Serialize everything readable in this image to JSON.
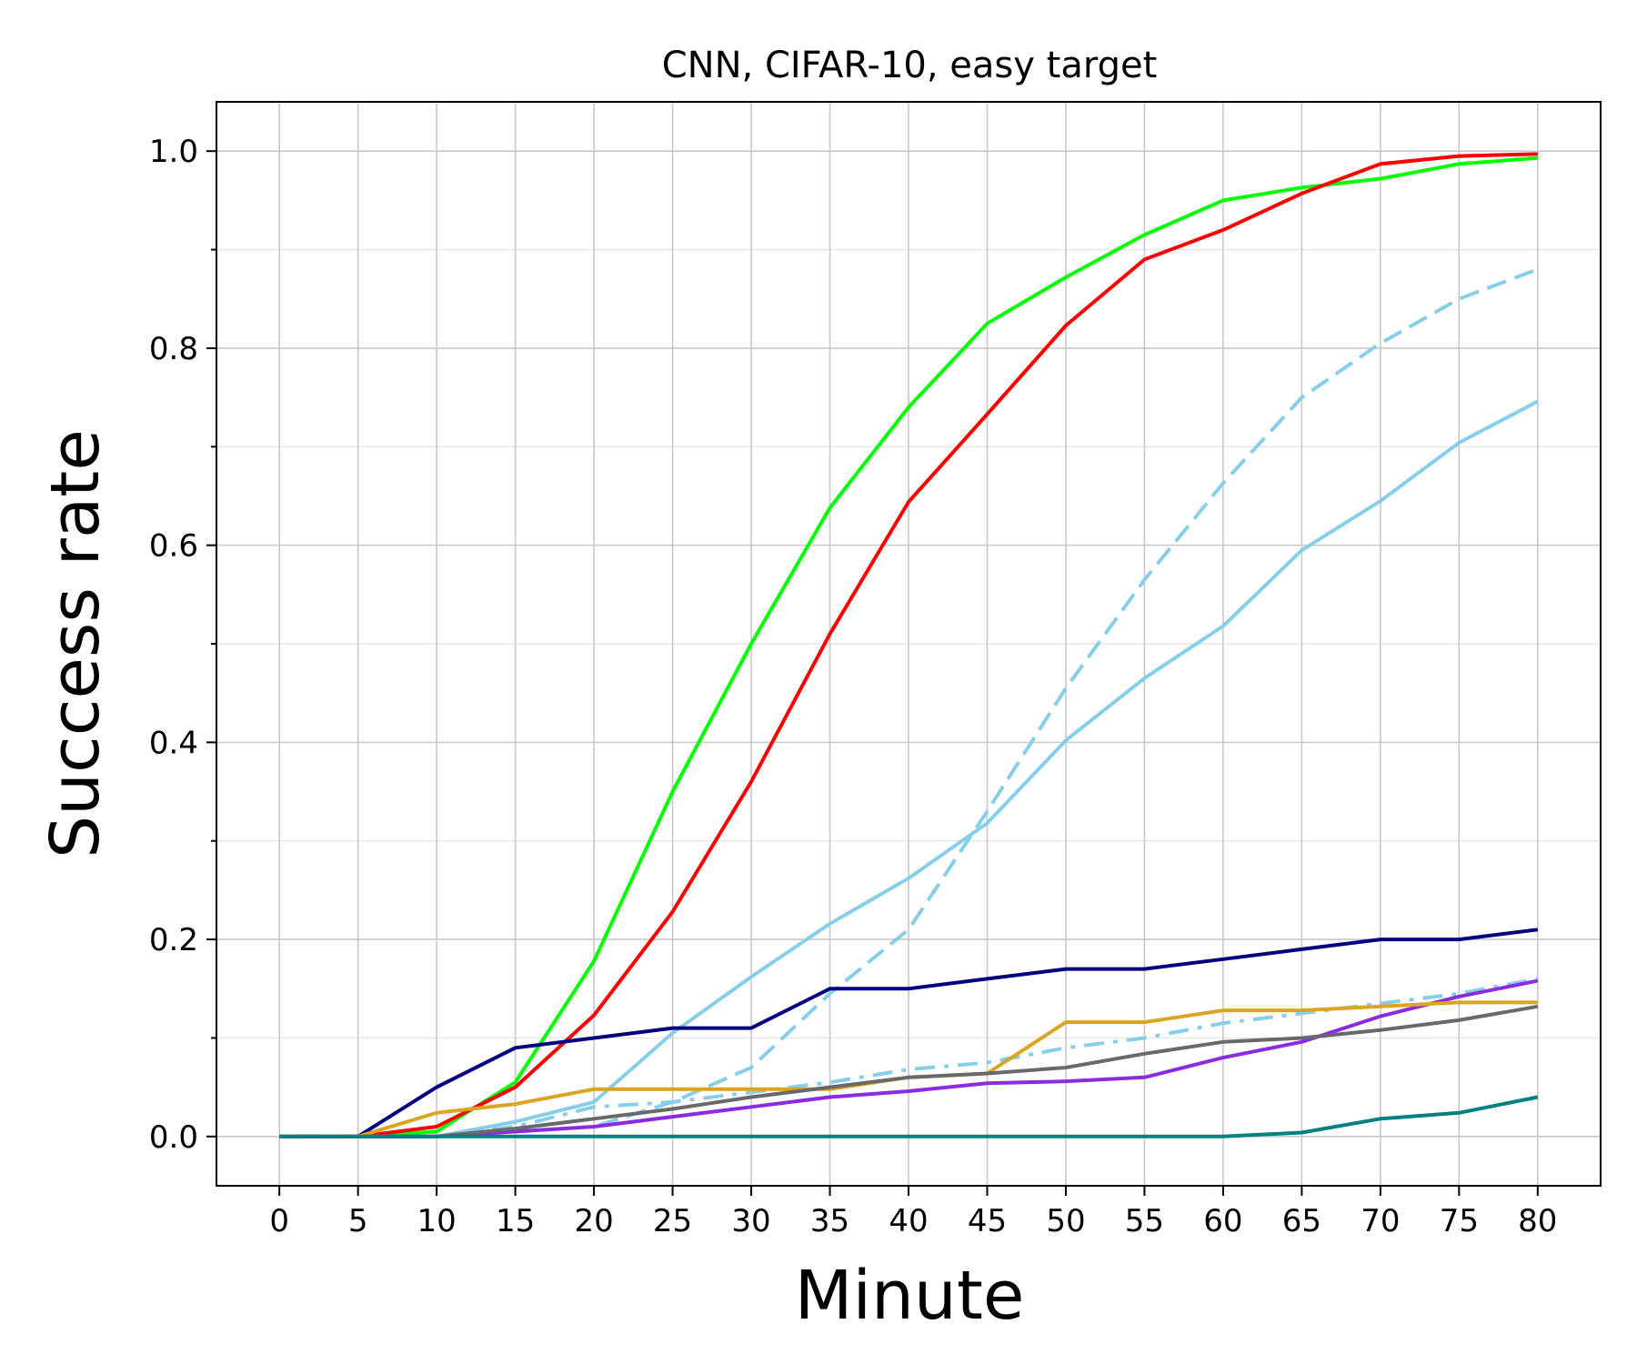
{
  "chart_data": {
    "type": "line",
    "title": "CNN, CIFAR-10, easy target",
    "xlabel": "Minute",
    "ylabel": "Success rate",
    "x": [
      0,
      5,
      10,
      15,
      20,
      25,
      30,
      35,
      40,
      45,
      50,
      55,
      60,
      65,
      70,
      75,
      80
    ],
    "xticks": [
      0,
      5,
      10,
      15,
      20,
      25,
      30,
      35,
      40,
      45,
      50,
      55,
      60,
      65,
      70,
      75,
      80
    ],
    "yticks": [
      0.0,
      0.2,
      0.4,
      0.6,
      0.8,
      1.0
    ],
    "ytick_labels": [
      "0.0",
      "0.2",
      "0.4",
      "0.6",
      "0.8",
      "1.0"
    ],
    "yminor_ticks": [
      0.1,
      0.3,
      0.5,
      0.7,
      0.9
    ],
    "xlim": [
      -4,
      84
    ],
    "ylim": [
      -0.05,
      1.05
    ],
    "grid": true,
    "series": [
      {
        "color": "#00ff00",
        "dash": "solid",
        "values": [
          0,
          0,
          0.005,
          0.055,
          0.178,
          0.35,
          0.5,
          0.638,
          0.74,
          0.825,
          0.872,
          0.915,
          0.95,
          0.963,
          0.972,
          0.987,
          0.993
        ]
      },
      {
        "color": "#ff0000",
        "dash": "solid",
        "values": [
          0,
          0,
          0.01,
          0.05,
          0.123,
          0.228,
          0.36,
          0.51,
          0.644,
          0.733,
          0.823,
          0.89,
          0.92,
          0.957,
          0.987,
          0.995,
          0.997
        ]
      },
      {
        "color": "#87ceeb",
        "dash": "dashed",
        "values": [
          0,
          0,
          0,
          0.005,
          0.01,
          0.035,
          0.07,
          0.145,
          0.21,
          0.33,
          0.455,
          0.565,
          0.663,
          0.75,
          0.805,
          0.85,
          0.88
        ]
      },
      {
        "color": "#87ceeb",
        "dash": "solid",
        "values": [
          0,
          0,
          0,
          0.015,
          0.035,
          0.105,
          0.162,
          0.216,
          0.262,
          0.318,
          0.402,
          0.465,
          0.518,
          0.595,
          0.645,
          0.704,
          0.746
        ]
      },
      {
        "color": "#000080",
        "dash": "solid",
        "values": [
          0,
          0,
          0.05,
          0.09,
          0.1,
          0.11,
          0.11,
          0.15,
          0.15,
          0.16,
          0.17,
          0.17,
          0.18,
          0.19,
          0.2,
          0.2,
          0.21
        ]
      },
      {
        "color": "#87ceeb",
        "dash": "dashdot",
        "values": [
          0,
          0,
          0,
          0.01,
          0.03,
          0.035,
          0.045,
          0.055,
          0.068,
          0.075,
          0.09,
          0.1,
          0.115,
          0.125,
          0.135,
          0.145,
          0.16
        ]
      },
      {
        "color": "#8a2be2",
        "dash": "solid",
        "values": [
          0,
          0,
          0,
          0.005,
          0.01,
          0.02,
          0.03,
          0.04,
          0.046,
          0.054,
          0.056,
          0.06,
          0.08,
          0.096,
          0.122,
          0.142,
          0.158
        ]
      },
      {
        "color": "#daa520",
        "dash": "solid",
        "values": [
          0,
          0,
          0.024,
          0.033,
          0.048,
          0.048,
          0.048,
          0.048,
          0.06,
          0.064,
          0.116,
          0.116,
          0.128,
          0.128,
          0.132,
          0.136,
          0.136
        ]
      },
      {
        "color": "#696969",
        "dash": "solid",
        "values": [
          0,
          0,
          0,
          0.008,
          0.018,
          0.028,
          0.04,
          0.05,
          0.06,
          0.064,
          0.07,
          0.084,
          0.096,
          0.1,
          0.108,
          0.118,
          0.132
        ]
      },
      {
        "color": "#008080",
        "dash": "solid",
        "values": [
          0,
          0,
          0,
          0,
          0,
          0,
          0,
          0,
          0,
          0,
          0,
          0,
          0,
          0.004,
          0.018,
          0.024,
          0.04
        ]
      }
    ]
  }
}
